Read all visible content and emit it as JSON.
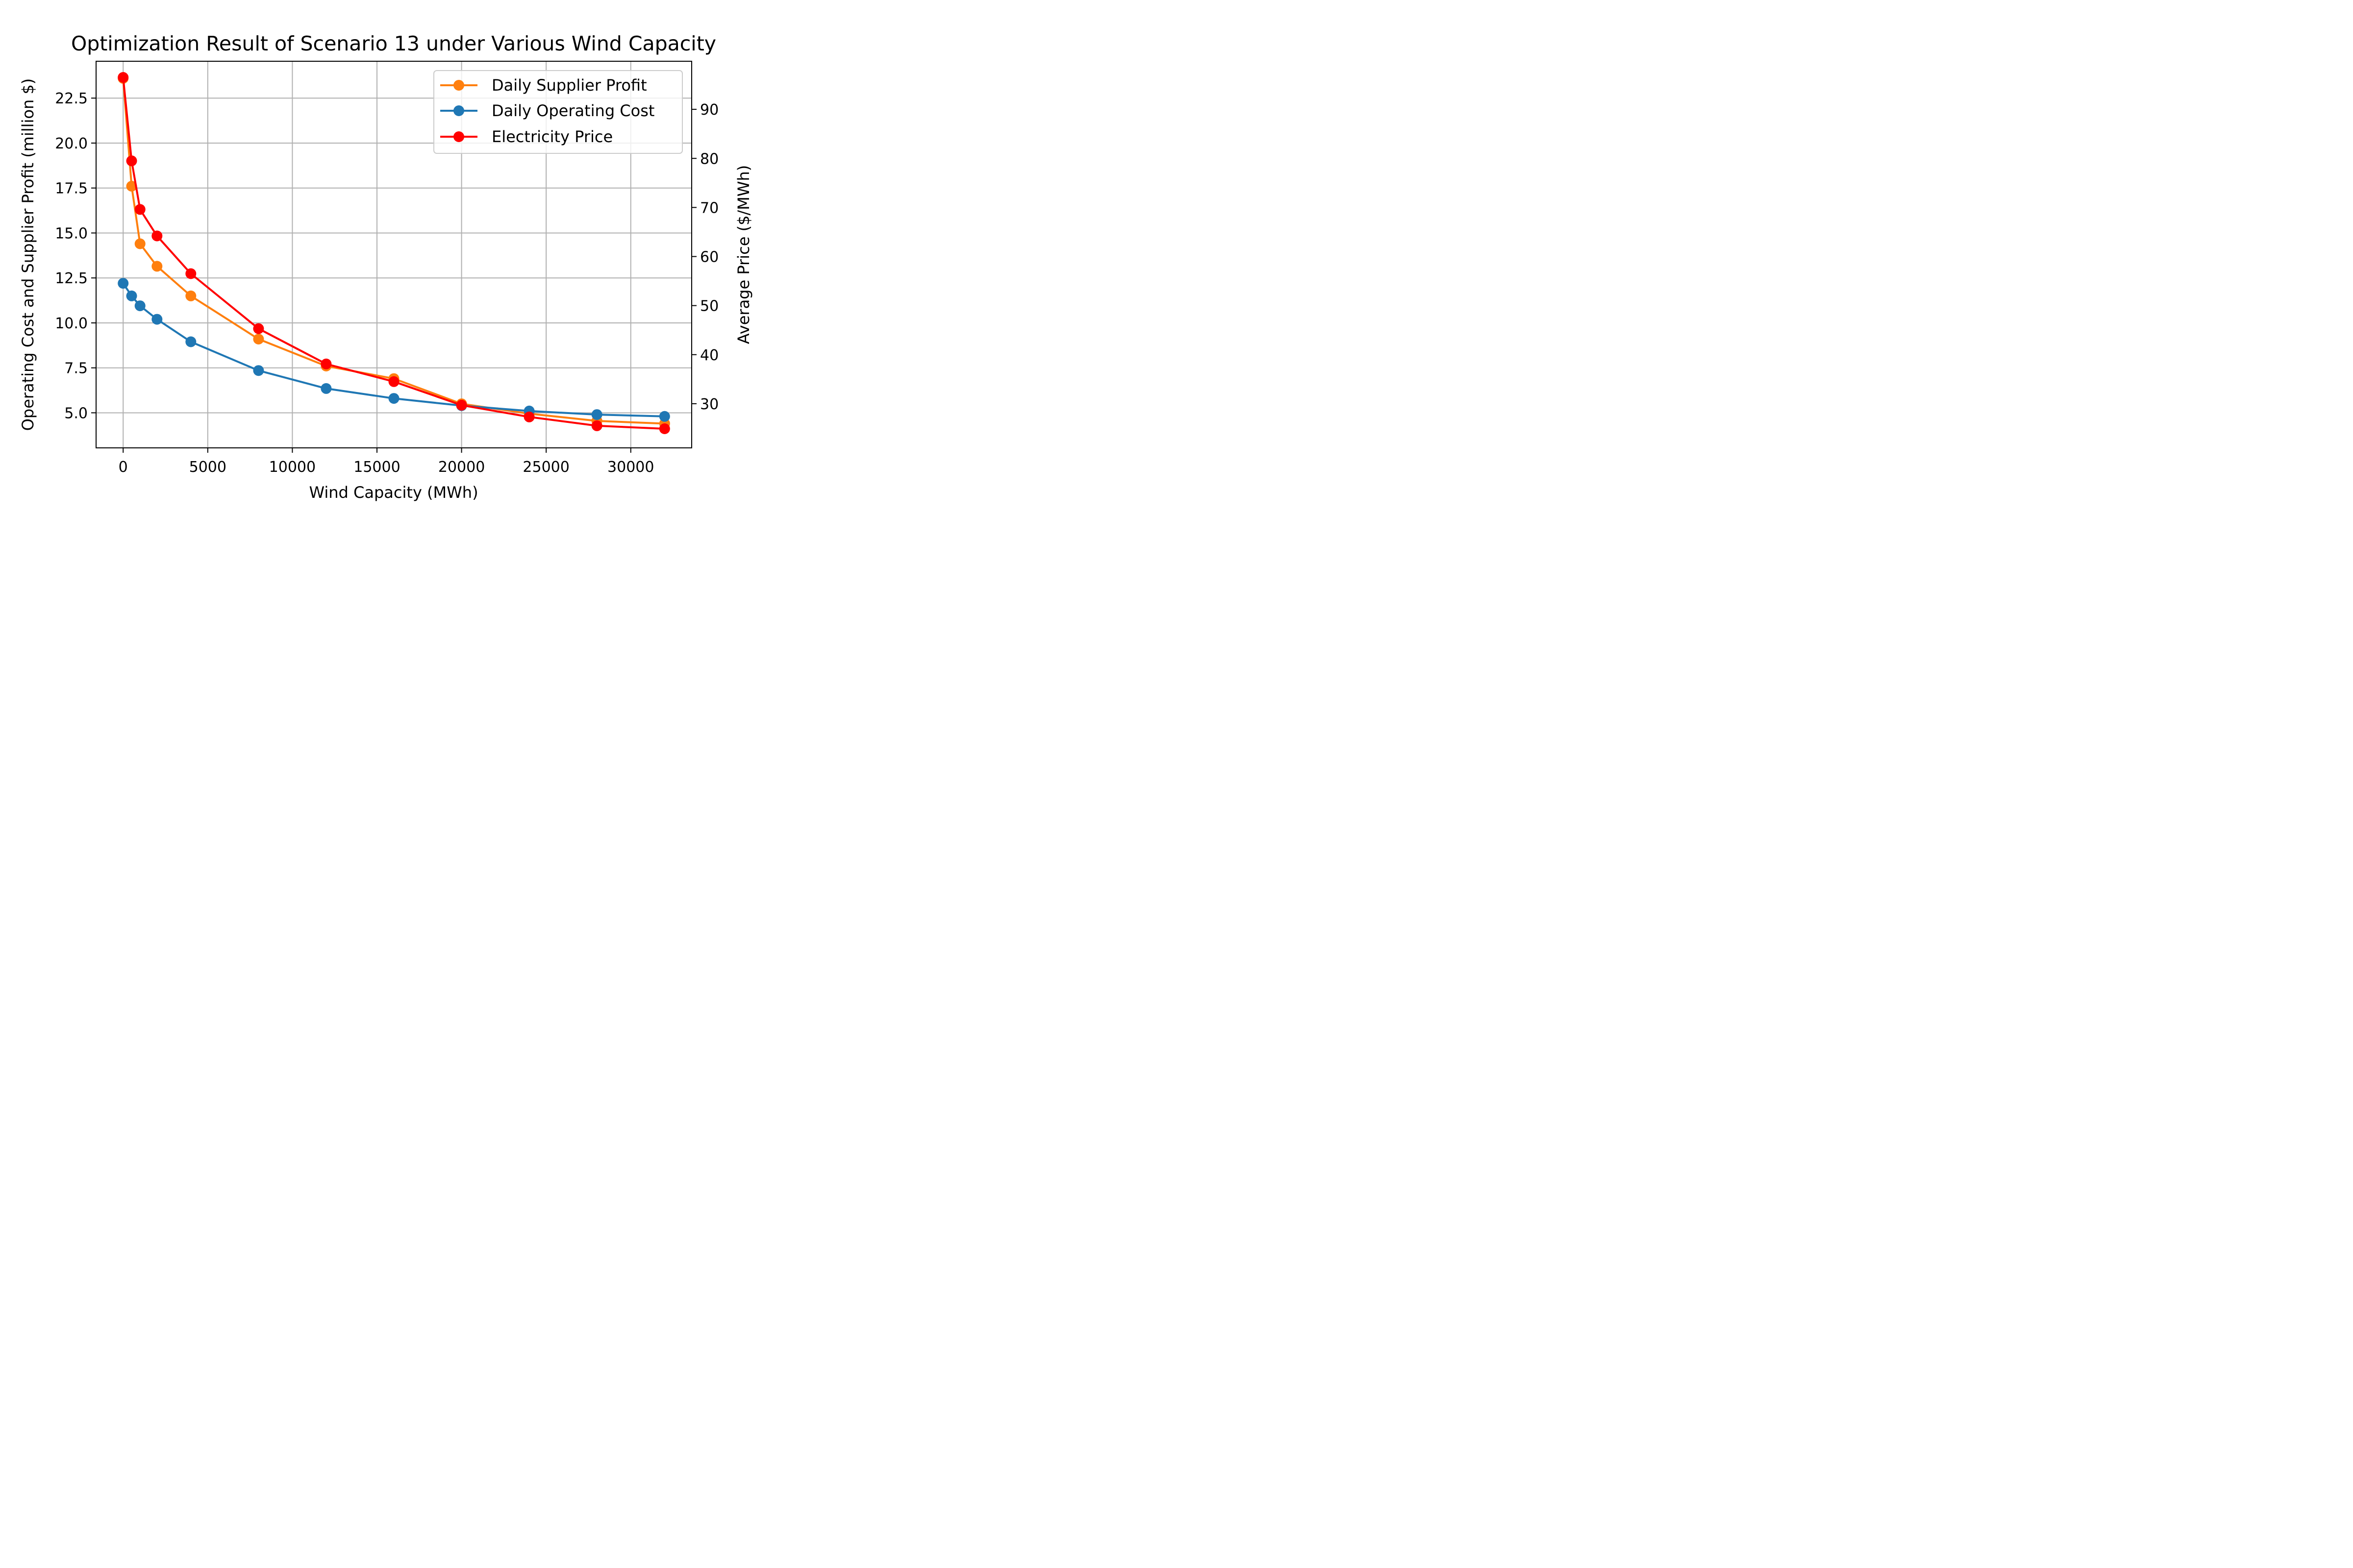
{
  "chart_data": {
    "type": "line",
    "title": "Optimization Result of Scenario 13 under Various Wind Capacity",
    "xlabel": "Wind Capacity (MWh)",
    "ylabel": "Operating Cost and Supplier Profit (million $)",
    "y2label": "Average Price ($/MWh)",
    "xlim": [
      -1600,
      33600
    ],
    "ylim": [
      3.05,
      24.55
    ],
    "y2lim": [
      21.0,
      99.8
    ],
    "xticks": [
      0,
      5000,
      10000,
      15000,
      20000,
      25000,
      30000
    ],
    "xtick_labels": [
      "0",
      "5000",
      "10000",
      "15000",
      "20000",
      "25000",
      "30000"
    ],
    "yticks": [
      5.0,
      7.5,
      10.0,
      12.5,
      15.0,
      17.5,
      20.0,
      22.5
    ],
    "ytick_labels": [
      "5.0",
      "7.5",
      "10.0",
      "12.5",
      "15.0",
      "17.5",
      "20.0",
      "22.5"
    ],
    "y2ticks": [
      30,
      40,
      50,
      60,
      70,
      80,
      90
    ],
    "y2tick_labels": [
      "30",
      "40",
      "50",
      "60",
      "70",
      "80",
      "90"
    ],
    "grid": true,
    "legend_position": "upper-right",
    "x": [
      0,
      500,
      1000,
      2000,
      4000,
      8000,
      12000,
      16000,
      20000,
      24000,
      28000,
      32000
    ],
    "series": [
      {
        "name": "Daily Supplier Profit",
        "axis": "left",
        "color": "#ff7f0e",
        "values": [
          23.6,
          17.6,
          14.4,
          13.15,
          11.5,
          9.1,
          7.6,
          6.9,
          5.5,
          4.95,
          4.55,
          4.4
        ]
      },
      {
        "name": "Daily Operating Cost",
        "axis": "left",
        "color": "#1f77b4",
        "values": [
          12.2,
          11.5,
          10.95,
          10.2,
          8.95,
          7.35,
          6.35,
          5.8,
          5.4,
          5.1,
          4.9,
          4.8
        ]
      },
      {
        "name": "Electricity Price",
        "axis": "right",
        "color": "#ff0000",
        "values": [
          96.5,
          79.5,
          69.6,
          64.2,
          56.5,
          45.3,
          38.1,
          34.5,
          29.7,
          27.3,
          25.5,
          24.9
        ]
      }
    ],
    "legend": [
      {
        "label": "Daily Supplier Profit",
        "color": "#ff7f0e"
      },
      {
        "label": "Daily Operating Cost",
        "color": "#1f77b4"
      },
      {
        "label": "Electricity Price",
        "color": "#ff0000"
      }
    ]
  }
}
